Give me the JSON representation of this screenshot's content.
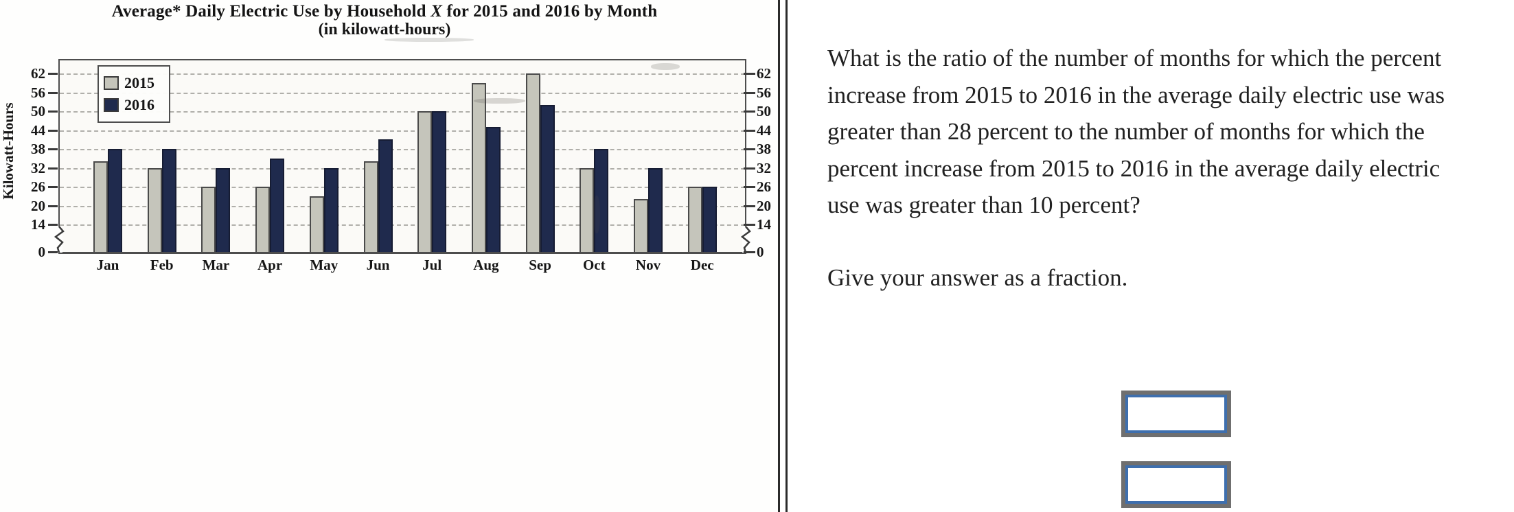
{
  "chart": {
    "title_prefix": "Average* Daily Electric Use by Household ",
    "title_x": "X",
    "title_suffix": " for 2015 and 2016 by Month",
    "subtitle": "(in kilowatt-hours)",
    "y_axis_label": "Kilowatt-Hours"
  },
  "chart_data": {
    "type": "bar",
    "title": "Average* Daily Electric Use by Household X for 2015 and 2016 by Month (in kilowatt-hours)",
    "ylabel": "Kilowatt-Hours",
    "xlabel": "",
    "categories": [
      "Jan",
      "Feb",
      "Mar",
      "Apr",
      "May",
      "Jun",
      "Jul",
      "Aug",
      "Sep",
      "Oct",
      "Nov",
      "Dec"
    ],
    "series": [
      {
        "name": "2015",
        "color": "#c5c5bb",
        "border": "#4a4a4a",
        "values": [
          34,
          32,
          26,
          26,
          23,
          34,
          50,
          59,
          62,
          32,
          22,
          26
        ]
      },
      {
        "name": "2016",
        "color": "#1f2a4d",
        "border": "#161c33",
        "values": [
          38,
          38,
          32,
          35,
          32,
          41,
          50,
          45,
          52,
          38,
          32,
          26
        ]
      }
    ],
    "yticks": [
      0,
      14,
      20,
      26,
      32,
      38,
      44,
      50,
      56,
      62
    ],
    "ylim": [
      0,
      66
    ],
    "axis_break_between": [
      0,
      14
    ],
    "grid": "dashed-horizontal",
    "legend_position": "top-left",
    "tick_labels_both_sides": true
  },
  "question": {
    "lines": [
      "What is the ratio of the number of months for which the percent",
      "increase from 2015 to 2016 in the average daily electric use was",
      "greater than 28 percent to the number of months for which the",
      "percent increase from 2015 to 2016 in the average daily electric",
      "use was greater than 10 percent?"
    ],
    "instruction": "Give your answer as a fraction.",
    "numerator": {
      "value": "",
      "placeholder": ""
    },
    "denominator": {
      "value": "",
      "placeholder": ""
    }
  }
}
